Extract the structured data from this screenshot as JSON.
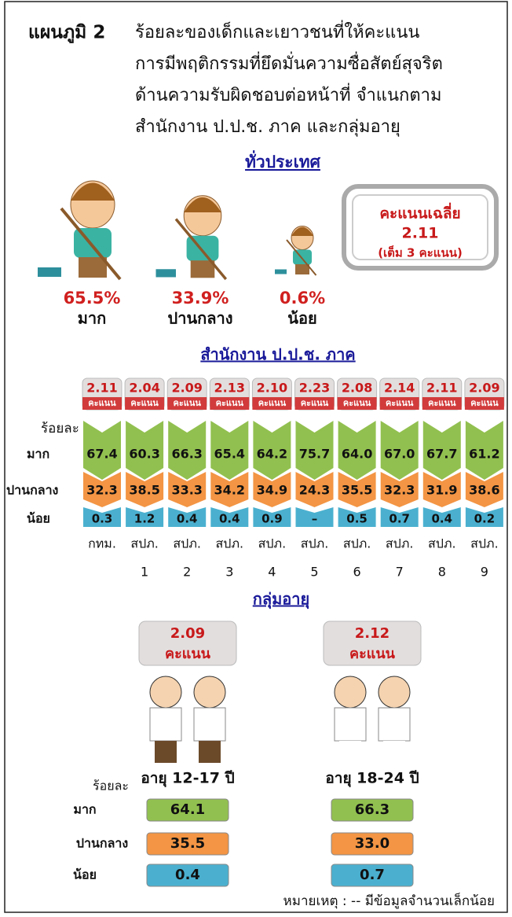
{
  "header": {
    "label": "แผนภูมิ 2",
    "title_lines": [
      "ร้อยละของเด็กและเยาวชนที่ให้คะแนน",
      "การมีพฤติกรรมที่ยึดมั่นความซื่อสัตย์สุจริต",
      "ด้านความรับผิดชอบต่อหน้าที่  จำแนกตาม",
      "สำนักงาน ป.ป.ช. ภาค  และกลุ่มอายุ"
    ]
  },
  "national": {
    "heading": "ทั่วประเทศ",
    "levels": [
      {
        "percent": "65.5%",
        "label": "มาก"
      },
      {
        "percent": "33.9%",
        "label": "ปานกลาง"
      },
      {
        "percent": "0.6%",
        "label": "น้อย"
      }
    ],
    "average": {
      "label": "คะแนนเฉลี่ย",
      "value": "2.11",
      "note": "(เต็ม 3 คะแนน)"
    }
  },
  "regions": {
    "heading": "สำนักงาน ป.ป.ช. ภาค",
    "unit": "ร้อยละ",
    "score_unit": "คะแนน",
    "row_labels": [
      "มาก",
      "ปานกลาง",
      "น้อย"
    ],
    "items": [
      {
        "score": "2.11",
        "high": "67.4",
        "mid": "32.3",
        "low": "0.3",
        "name": "กทม."
      },
      {
        "score": "2.04",
        "high": "60.3",
        "mid": "38.5",
        "low": "1.2",
        "name": "สปภ.",
        "number": "1"
      },
      {
        "score": "2.09",
        "high": "66.3",
        "mid": "33.3",
        "low": "0.4",
        "name": "สปภ.",
        "number": "2"
      },
      {
        "score": "2.13",
        "high": "65.4",
        "mid": "34.2",
        "low": "0.4",
        "name": "สปภ.",
        "number": "3"
      },
      {
        "score": "2.10",
        "high": "64.2",
        "mid": "34.9",
        "low": "0.9",
        "name": "สปภ.",
        "number": "4"
      },
      {
        "score": "2.23",
        "high": "75.7",
        "mid": "24.3",
        "low": "–",
        "name": "สปภ.",
        "number": "5"
      },
      {
        "score": "2.08",
        "high": "64.0",
        "mid": "35.5",
        "low": "0.5",
        "name": "สปภ.",
        "number": "6"
      },
      {
        "score": "2.14",
        "high": "67.0",
        "mid": "32.3",
        "low": "0.7",
        "name": "สปภ.",
        "number": "7"
      },
      {
        "score": "2.11",
        "high": "67.7",
        "mid": "31.9",
        "low": "0.4",
        "name": "สปภ.",
        "number": "8"
      },
      {
        "score": "2.09",
        "high": "61.2",
        "mid": "38.6",
        "low": "0.2",
        "name": "สปภ.",
        "number": "9"
      }
    ]
  },
  "age": {
    "heading": "กลุ่มอายุ",
    "unit": "ร้อยละ",
    "row_labels": [
      "มาก",
      "ปานกลาง",
      "น้อย"
    ],
    "groups": [
      {
        "score": "2.09",
        "score_unit": "คะแนน",
        "label": "อายุ 12-17 ปี",
        "values": [
          "64.1",
          "35.5",
          "0.4"
        ]
      },
      {
        "score": "2.12",
        "score_unit": "คะแนน",
        "label": "อายุ 18-24 ปี",
        "values": [
          "66.3",
          "33.0",
          "0.7"
        ]
      }
    ]
  },
  "note": "หมายเหตุ : -- มีข้อมูลจำนวนเล็กน้อย"
}
